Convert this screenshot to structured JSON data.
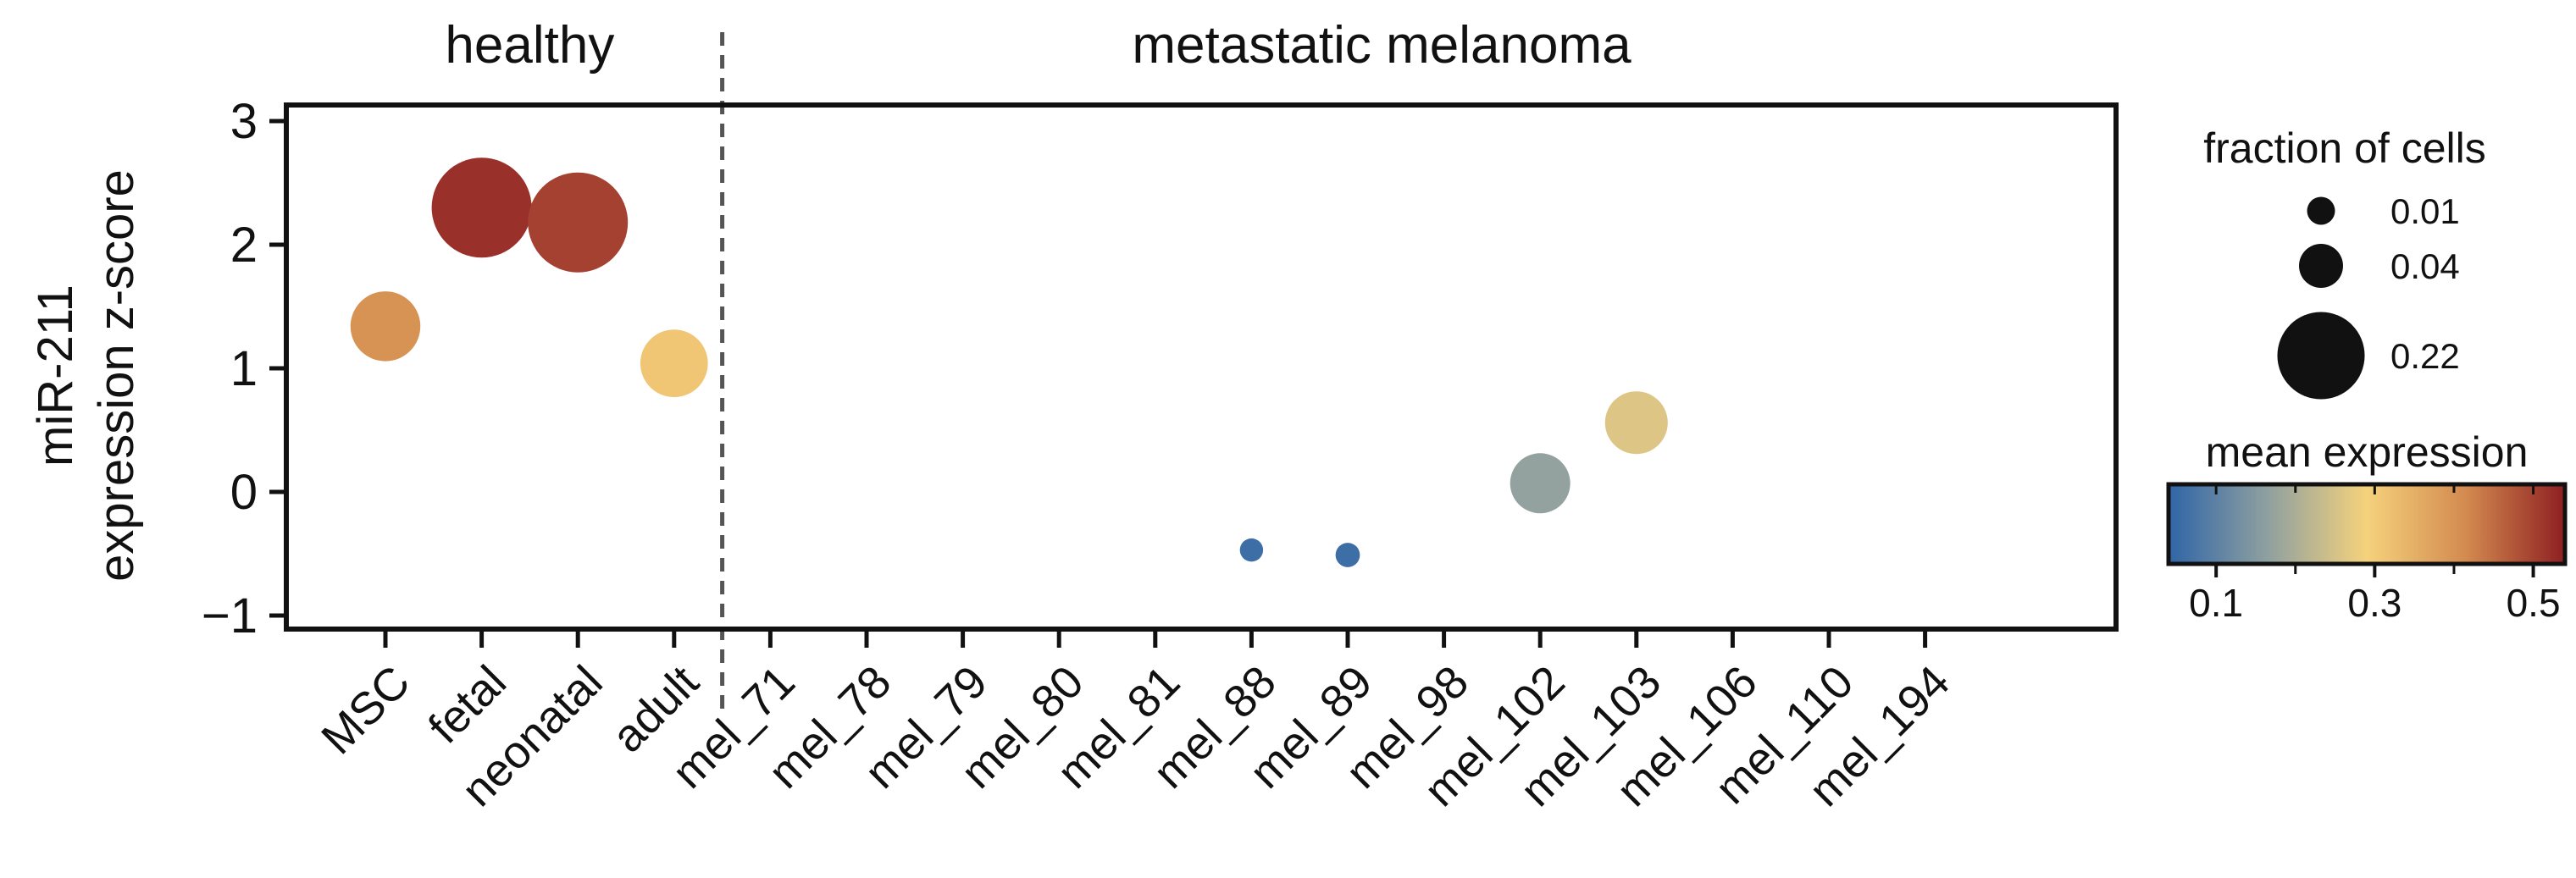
{
  "chart_data": {
    "type": "scatter",
    "ylabel": [
      "miR-211",
      "expression z-score"
    ],
    "ylim": [
      -1.15,
      3.15
    ],
    "yticks": [
      {
        "value": 3,
        "label": "3"
      },
      {
        "value": 2,
        "label": "2"
      },
      {
        "value": 1,
        "label": "1"
      },
      {
        "value": 0,
        "label": "0"
      },
      {
        "value": -1,
        "label": "−1"
      }
    ],
    "groups": [
      {
        "label": "healthy",
        "categories": [
          "MSC",
          "fetal",
          "neonatal",
          "adult"
        ]
      },
      {
        "label": "metastatic melanoma",
        "categories": [
          "mel_71",
          "mel_78",
          "mel_79",
          "mel_80",
          "mel_81",
          "mel_88",
          "mel_89",
          "mel_98",
          "mel_102",
          "mel_103",
          "mel_106",
          "mel_110",
          "mel_194"
        ]
      }
    ],
    "categories": [
      "MSC",
      "fetal",
      "neonatal",
      "adult",
      "mel_71",
      "mel_78",
      "mel_79",
      "mel_80",
      "mel_81",
      "mel_88",
      "mel_89",
      "mel_98",
      "mel_102",
      "mel_103",
      "mel_106",
      "mel_110",
      "mel_194"
    ],
    "points": [
      {
        "category": "MSC",
        "z_score": 1.34,
        "fraction_of_cells": 0.13,
        "mean_expression": 0.4
      },
      {
        "category": "fetal",
        "z_score": 2.3,
        "fraction_of_cells": 0.3,
        "mean_expression": 0.52
      },
      {
        "category": "neonatal",
        "z_score": 2.18,
        "fraction_of_cells": 0.3,
        "mean_expression": 0.5
      },
      {
        "category": "adult",
        "z_score": 1.04,
        "fraction_of_cells": 0.12,
        "mean_expression": 0.31
      },
      {
        "category": "mel_88",
        "z_score": -0.47,
        "fraction_of_cells": 0.005,
        "mean_expression": 0.06
      },
      {
        "category": "mel_89",
        "z_score": -0.51,
        "fraction_of_cells": 0.006,
        "mean_expression": 0.06
      },
      {
        "category": "mel_102",
        "z_score": 0.07,
        "fraction_of_cells": 0.09,
        "mean_expression": 0.17
      },
      {
        "category": "mel_103",
        "z_score": 0.56,
        "fraction_of_cells": 0.1,
        "mean_expression": 0.26
      }
    ],
    "size_legend": {
      "title": "fraction of cells",
      "entries": [
        {
          "value": 0.01,
          "label": "0.01"
        },
        {
          "value": 0.04,
          "label": "0.04"
        },
        {
          "value": 0.22,
          "label": "0.22"
        }
      ]
    },
    "colorbar": {
      "title": "mean expression",
      "range": [
        0.04,
        0.54
      ],
      "colors": [
        "#2f65a7",
        "#8fa0a0",
        "#f5d27c",
        "#d38a4f",
        "#8e1f22"
      ],
      "ticks": [
        {
          "value": 0.1,
          "label": "0.1"
        },
        {
          "value": 0.3,
          "label": "0.3"
        },
        {
          "value": 0.5,
          "label": "0.5"
        }
      ]
    }
  }
}
